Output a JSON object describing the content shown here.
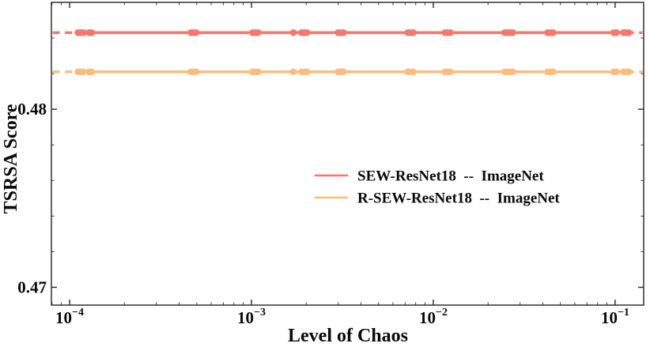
{
  "figure": {
    "background": "#ffffff",
    "spine_color": "#3d3d3d",
    "tick_color": "#2a2a2a",
    "text_color": "#0a0a0a"
  },
  "chart_data": {
    "type": "line",
    "title": "",
    "xlabel": "Level of Chaos",
    "ylabel": "TSRSA Score",
    "x_scale": "log",
    "y_scale": "linear",
    "xlim": [
      7.94e-05,
      0.1435
    ],
    "ylim": [
      0.469,
      0.486
    ],
    "grid": false,
    "legend_position": "center-right",
    "x_major_ticks": [
      0.0001,
      0.001,
      0.01,
      0.1
    ],
    "x_major_tick_labels": [
      {
        "base": "10",
        "exp": "−4"
      },
      {
        "base": "10",
        "exp": "−3"
      },
      {
        "base": "10",
        "exp": "−2"
      },
      {
        "base": "10",
        "exp": "−1"
      }
    ],
    "y_major_ticks": [
      0.47,
      0.48
    ],
    "y_major_tick_labels": [
      "0.47",
      "0.48"
    ],
    "y_minor_ticks": [
      0.472,
      0.474,
      0.476,
      0.478,
      0.482,
      0.484
    ],
    "clusters": [
      {
        "x": 0.000115,
        "n": 3
      },
      {
        "x": 0.00013,
        "n": 2
      },
      {
        "x": 0.00048,
        "n": 3
      },
      {
        "x": 0.00105,
        "n": 3
      },
      {
        "x": 0.0017,
        "n": 1
      },
      {
        "x": 0.00195,
        "n": 3
      },
      {
        "x": 0.0031,
        "n": 3
      },
      {
        "x": 0.0075,
        "n": 3
      },
      {
        "x": 0.012,
        "n": 3
      },
      {
        "x": 0.026,
        "n": 4
      },
      {
        "x": 0.044,
        "n": 3
      },
      {
        "x": 0.1,
        "n": 2
      },
      {
        "x": 0.115,
        "n": 3
      }
    ],
    "series": [
      {
        "name": "SEW-ResNet18  --  ImageNet",
        "color": "#f4786b",
        "y_value": 0.4843,
        "solid_span": [
          0.000112,
          0.116
        ],
        "dashed_ends": true
      },
      {
        "name": "R-SEW-ResNet18  --  ImageNet",
        "color": "#fbbd7c",
        "y_value": 0.4821,
        "solid_span": [
          0.000112,
          0.116
        ],
        "dashed_ends": true
      }
    ]
  }
}
